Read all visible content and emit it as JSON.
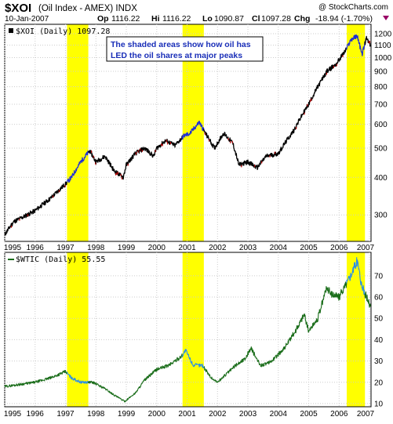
{
  "header": {
    "symbol": "$XOI",
    "name": "(Oil Index - AMEX) INDX",
    "watermark": "@ StockCharts.com",
    "date": "10-Jan-2007",
    "op_label": "Op",
    "op": "1116.22",
    "hi_label": "Hi",
    "hi": "1116.22",
    "lo_label": "Lo",
    "lo": "1090.87",
    "cl_label": "Cl",
    "cl": "1097.28",
    "chg_label": "Chg",
    "chg": "-18.94 (-1.70%)"
  },
  "colors": {
    "shade": "#ffff00",
    "xoi_line": "#000000",
    "xoi_highlight": "#1f2fd6",
    "xoi_down": "#cc0000",
    "wtic_line": "#1a6d1a",
    "wtic_highlight": "#2a8fe8",
    "annotation_text": "#1a2fb8",
    "grid": "#cccccc",
    "chg_arrow": "#990066"
  },
  "annotation": {
    "line1": "The shaded areas show how oil has",
    "line2": "LED the oil shares at major peaks"
  },
  "chart_data": [
    {
      "type": "line",
      "legend": "$XOI (Daily) 1097.28",
      "y_scale": "log",
      "ylim": [
        245,
        1290
      ],
      "y_ticks": [
        300,
        400,
        500,
        600,
        700,
        800,
        900,
        1000,
        1100,
        1200
      ],
      "x_ticks": [
        "1995",
        "1996",
        "1997",
        "1998",
        "1999",
        "2000",
        "2001",
        "2002",
        "2003",
        "2004",
        "2005",
        "2006",
        "2007"
      ],
      "grid": true,
      "shaded_periods": [
        [
          1997.05,
          1997.75
        ],
        [
          2000.85,
          2001.55
        ],
        [
          2006.25,
          2006.85
        ]
      ],
      "series": [
        {
          "x": [
            1995.0,
            1995.3,
            1995.6,
            1996.0,
            1996.5,
            1997.0,
            1997.2,
            1997.5,
            1997.8,
            1998.0,
            1998.3,
            1998.6,
            1998.9,
            1999.0,
            1999.3,
            1999.6,
            1999.9,
            2000.0,
            2000.3,
            2000.6,
            2000.9,
            2001.1,
            2001.4,
            2001.6,
            2001.9,
            2002.2,
            2002.5,
            2002.7,
            2003.0,
            2003.3,
            2003.6,
            2004.0,
            2004.5,
            2005.0,
            2005.3,
            2005.6,
            2005.9,
            2006.2,
            2006.4,
            2006.6,
            2006.75,
            2006.9,
            2007.03
          ],
          "y": [
            258,
            285,
            295,
            310,
            340,
            380,
            400,
            450,
            490,
            450,
            470,
            420,
            400,
            440,
            480,
            500,
            470,
            500,
            530,
            510,
            550,
            560,
            610,
            560,
            500,
            560,
            520,
            440,
            450,
            430,
            470,
            480,
            570,
            700,
            800,
            900,
            950,
            1050,
            1150,
            1180,
            1020,
            1160,
            1097
          ]
        }
      ]
    },
    {
      "type": "line",
      "legend": "$WTIC (Daily) 55.55",
      "y_scale": "linear",
      "ylim": [
        8.5,
        81
      ],
      "y_ticks": [
        10,
        20,
        30,
        40,
        50,
        60,
        70
      ],
      "x_ticks": [
        "1995",
        "1996",
        "1997",
        "1998",
        "1999",
        "2000",
        "2001",
        "2002",
        "2003",
        "2004",
        "2005",
        "2006",
        "2007"
      ],
      "grid": true,
      "shaded_periods": [
        [
          1997.05,
          1997.75
        ],
        [
          2000.85,
          2001.55
        ],
        [
          2006.25,
          2006.85
        ]
      ],
      "series": [
        {
          "x": [
            1995.0,
            1995.5,
            1996.0,
            1996.5,
            1997.0,
            1997.2,
            1997.5,
            1997.9,
            1998.3,
            1998.6,
            1998.95,
            1999.3,
            1999.6,
            2000.0,
            2000.4,
            2000.8,
            2000.95,
            2001.2,
            2001.5,
            2001.8,
            2002.0,
            2002.3,
            2002.6,
            2002.9,
            2003.1,
            2003.4,
            2003.7,
            2004.0,
            2004.3,
            2004.6,
            2004.85,
            2005.0,
            2005.3,
            2005.6,
            2005.7,
            2006.0,
            2006.3,
            2006.6,
            2006.75,
            2006.9,
            2007.03
          ],
          "y": [
            18,
            19,
            20,
            22,
            25,
            22,
            20,
            20,
            17,
            14,
            11,
            15,
            21,
            26,
            28,
            32,
            35,
            28,
            28,
            22,
            20,
            24,
            28,
            31,
            36,
            28,
            29,
            33,
            38,
            45,
            52,
            44,
            50,
            65,
            62,
            60,
            68,
            77,
            65,
            60,
            55.55
          ]
        }
      ]
    }
  ]
}
